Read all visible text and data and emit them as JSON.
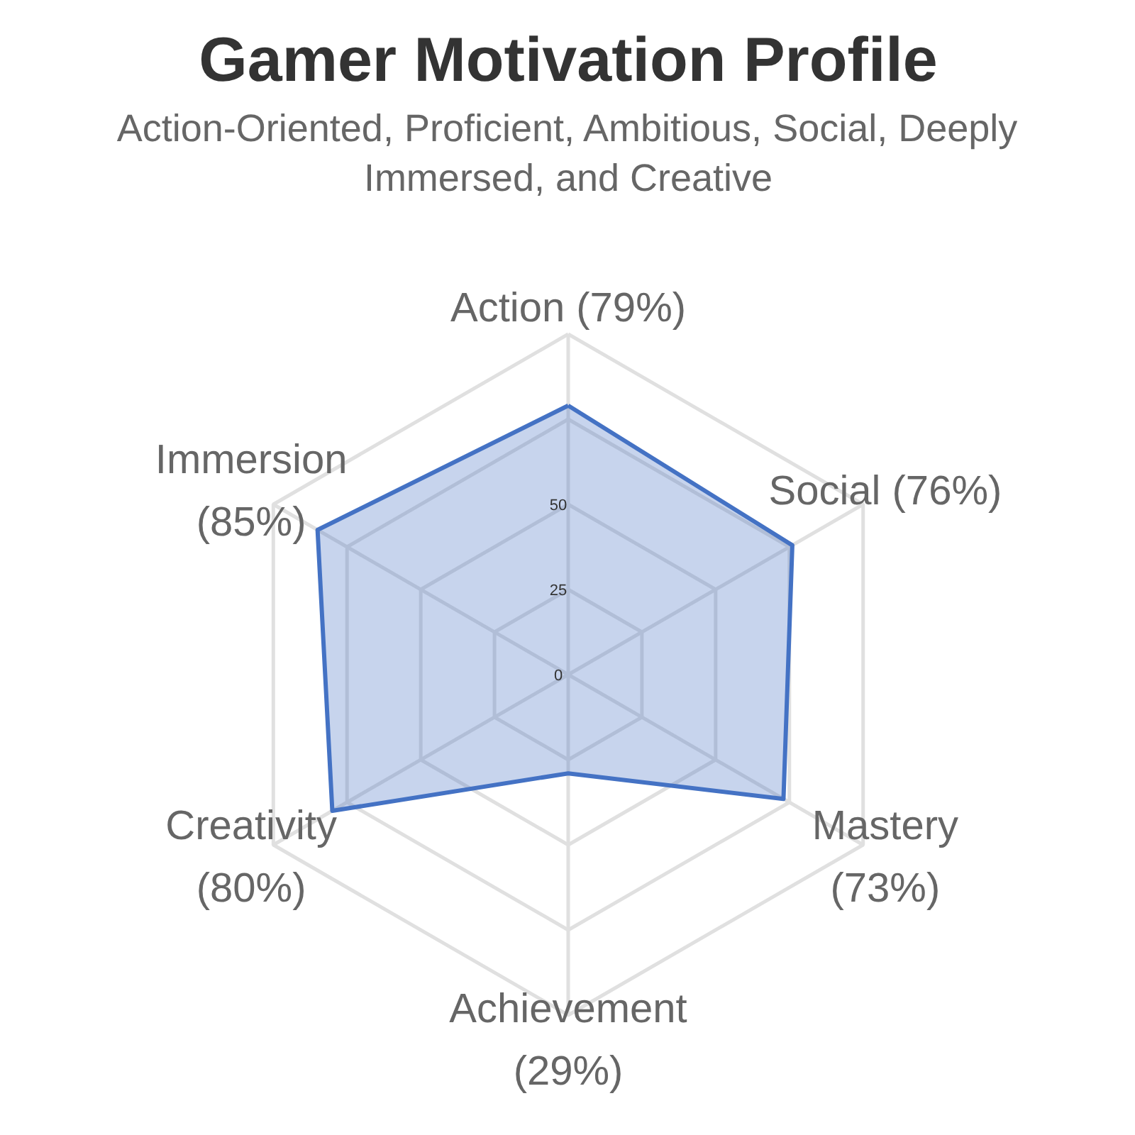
{
  "chart_data": {
    "type": "radar",
    "title": "Gamer Motivation Profile",
    "subtitle": "Action-Oriented, Proficient, Ambitious, Social, Deeply Immersed, and Creative",
    "categories": [
      "Action (79%)",
      "Social (76%)",
      "Mastery (73%)",
      "Achievement (29%)",
      "Creativity (80%)",
      "Immersion (85%)"
    ],
    "series": [
      {
        "color": "#4472c4",
        "values": [
          79,
          76,
          73,
          29,
          80,
          85
        ]
      }
    ],
    "ylim": [
      0,
      100
    ],
    "yticks": [
      0,
      25,
      50
    ],
    "grid": true
  }
}
